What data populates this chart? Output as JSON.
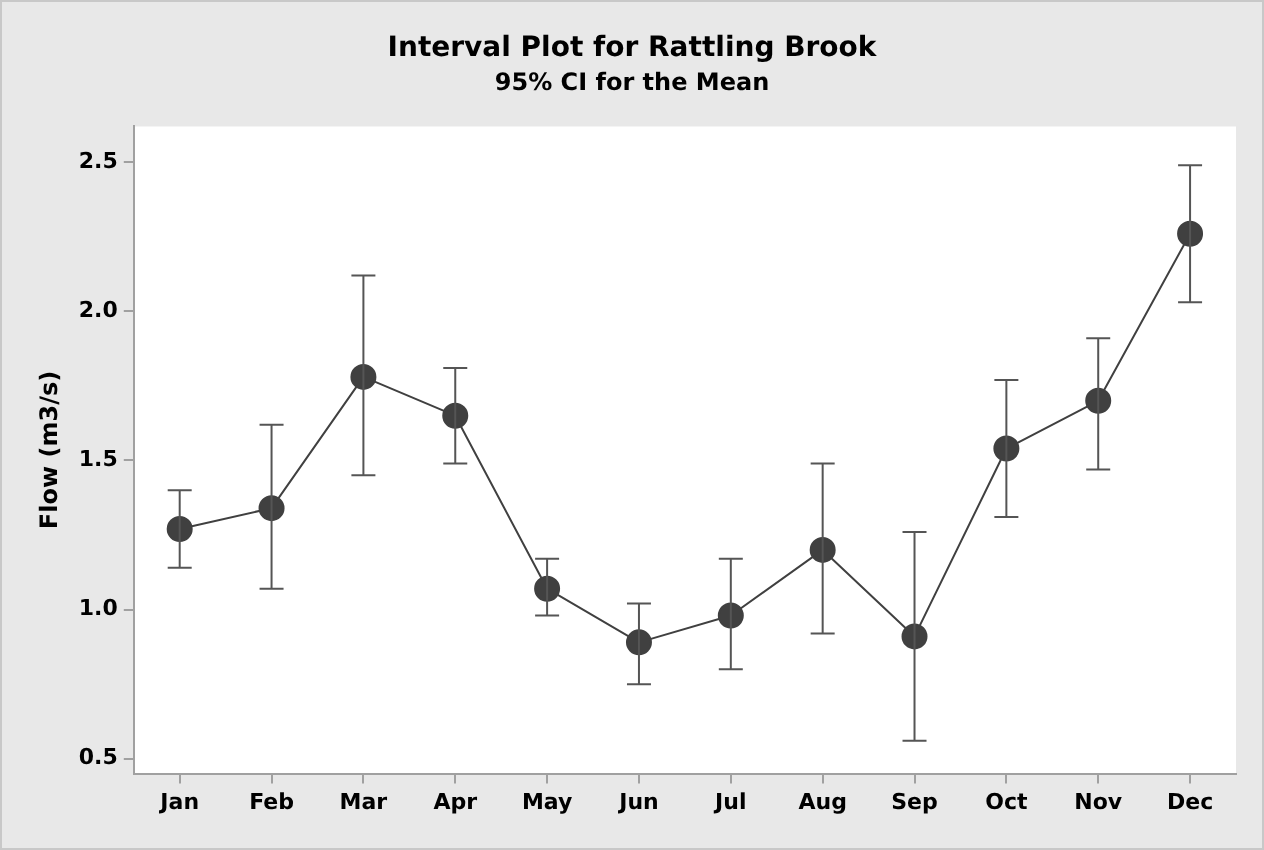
{
  "chart_data": {
    "type": "line",
    "title": "Interval Plot for Rattling Brook",
    "subtitle": "95% CI for the Mean",
    "ylabel": "Flow (m3/s)",
    "categories": [
      "Jan",
      "Feb",
      "Mar",
      "Apr",
      "May",
      "Jun",
      "Jul",
      "Aug",
      "Sep",
      "Oct",
      "Nov",
      "Dec"
    ],
    "series": [
      {
        "color": "#404040",
        "values": [
          1.27,
          1.34,
          1.78,
          1.65,
          1.07,
          0.89,
          0.98,
          1.2,
          0.91,
          1.54,
          1.7,
          2.26
        ],
        "errors": [
          [
            1.14,
            1.4
          ],
          [
            1.07,
            1.62
          ],
          [
            1.45,
            2.12
          ],
          [
            1.49,
            1.81
          ],
          [
            0.98,
            1.17
          ],
          [
            0.75,
            1.02
          ],
          [
            0.8,
            1.17
          ],
          [
            0.92,
            1.49
          ],
          [
            0.56,
            1.26
          ],
          [
            1.31,
            1.77
          ],
          [
            1.47,
            1.91
          ],
          [
            2.03,
            2.49
          ]
        ]
      }
    ],
    "ylim": [
      0.45,
      2.62
    ],
    "yticks": [
      {
        "value": 0.5,
        "label": "0.5"
      },
      {
        "value": 1,
        "label": "1.0"
      },
      {
        "value": 1.5,
        "label": "1.5"
      },
      {
        "value": 2,
        "label": "2.0"
      },
      {
        "value": 2.5,
        "label": "2.5"
      }
    ],
    "grid": false,
    "legend": false,
    "marker": "circle",
    "line_style": "solid"
  }
}
